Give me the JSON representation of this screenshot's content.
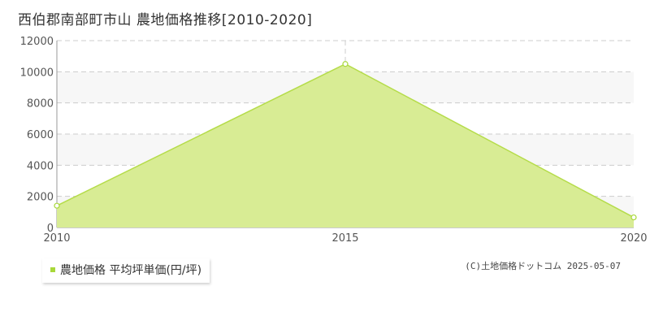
{
  "title": "西伯郡南部町市山 農地価格推移[2010-2020]",
  "legend": {
    "label": "農地価格 平均坪単価(円/坪)"
  },
  "credit": "(C)土地価格ドットコム 2025-05-07",
  "colors": {
    "fill": "#d8ec94",
    "line": "#b5dc4a",
    "point": "#a8d83a",
    "grid": "#cccccc"
  },
  "chart_data": {
    "type": "area",
    "title": "西伯郡南部町市山 農地価格推移[2010-2020]",
    "xlabel": "",
    "ylabel": "",
    "x": [
      2010,
      2015,
      2020
    ],
    "series": [
      {
        "name": "農地価格 平均坪単価(円/坪)",
        "values": [
          1400,
          10500,
          650
        ]
      }
    ],
    "xlim": [
      2010,
      2020
    ],
    "ylim": [
      0,
      12000
    ],
    "yticks": [
      0,
      2000,
      4000,
      6000,
      8000,
      10000,
      12000
    ],
    "xticks": [
      2010,
      2015,
      2020
    ],
    "grid": true,
    "legend_position": "bottom-left"
  }
}
